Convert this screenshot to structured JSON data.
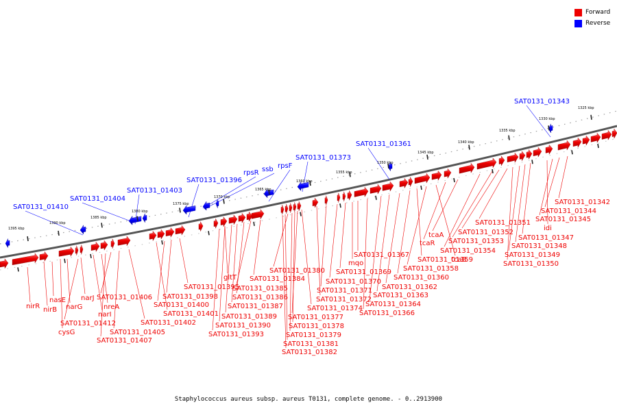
{
  "legend": {
    "forward_label": "Forward",
    "reverse_label": "Reverse",
    "forward_color": "#ee0000",
    "reverse_color": "#0000ff"
  },
  "caption": "Staphylococcus aureus subsp. aureus T0131, complete genome. - 0..2913900",
  "ticks": [
    "1325 kbp",
    "1330 kbp",
    "1335 kbp",
    "1340 kbp",
    "1345 kbp",
    "1350 kbp",
    "1355 kbp",
    "1360 kbp",
    "1365 kbp",
    "1370 kbp",
    "1375 kbp",
    "1380 kbp",
    "1385 kbp",
    "1390 kbp",
    "1395 kbp"
  ],
  "reverse_labels": [
    "SAT0131_01343",
    "SAT0131_01361",
    "SAT0131_01373",
    "rpsF",
    "ssb",
    "rpsR",
    "SAT0131_01396",
    "SAT0131_01403",
    "SAT0131_01404",
    "SAT0131_01410"
  ],
  "forward_labels": [
    "SAT0131_01342",
    "SAT0131_01344",
    "SAT0131_01345",
    "idi",
    "SAT0131_01347",
    "SAT0131_01348",
    "SAT0131_01349",
    "SAT0131_01350",
    "SAT0131_01351",
    "SAT0131_01352",
    "SAT0131_01353",
    "SAT0131_01354",
    "tcaA",
    "tcaR",
    "tcaB",
    "SAT0131_01358",
    "SAT0131_01359",
    "SAT0131_01360",
    "SAT0131_01362",
    "SAT0131_01363",
    "SAT0131_01364",
    "SAT0131_01366",
    "SAT0131_01367",
    "mqo",
    "SAT0131_01369",
    "SAT0131_01370",
    "SAT0131_01371",
    "SAT0131_01372",
    "SAT0131_01374",
    "SAT0131_01377",
    "SAT0131_01378",
    "SAT0131_01379",
    "SAT0131_01380",
    "SAT0131_01381",
    "SAT0131_01382",
    "SAT0131_01384",
    "SAT0131_01385",
    "SAT0131_01386",
    "SAT0131_01387",
    "gltT",
    "SAT0131_01389",
    "SAT0131_01390",
    "SAT0131_01393",
    "SAT0131_01395",
    "SAT0131_01398",
    "SAT0131_01400",
    "SAT0131_01401",
    "SAT0131_01402",
    "SAT0131_01405",
    "SAT0131_01406",
    "SAT0131_01407",
    "nreA",
    "narI",
    "narJ",
    "SAT0131_01412",
    "narG",
    "cysG",
    "nasE",
    "nirB",
    "nirR"
  ]
}
